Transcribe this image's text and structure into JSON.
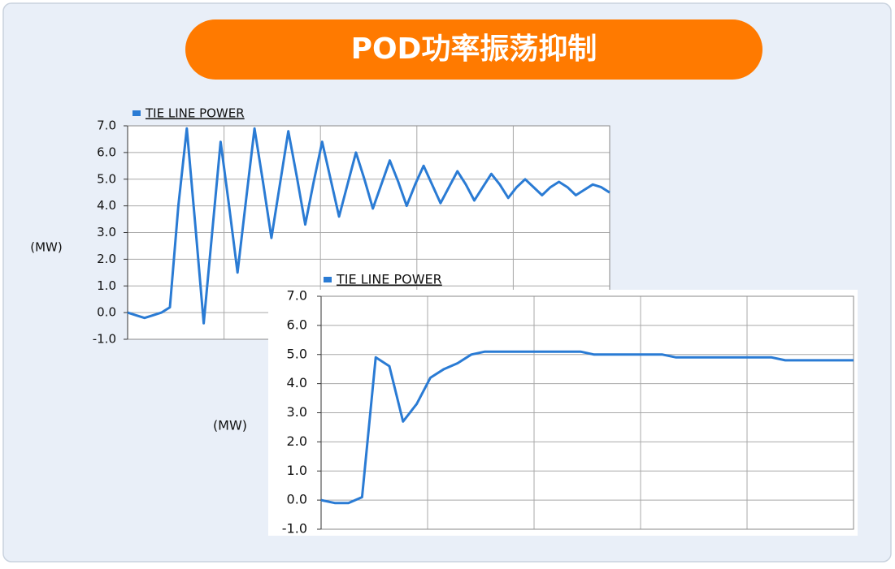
{
  "title": "POD功率振荡抑制",
  "chart_data": [
    {
      "type": "line",
      "ylabel": "(MW)",
      "grid": true,
      "ylim": [
        -1,
        7
      ],
      "yticks": [
        {
          "value": -1,
          "label": "-1.0"
        },
        {
          "value": 0,
          "label": "0.0"
        },
        {
          "value": 1,
          "label": "1.0"
        },
        {
          "value": 2,
          "label": "2.0"
        },
        {
          "value": 3,
          "label": "3.0"
        },
        {
          "value": 4,
          "label": "4.0"
        },
        {
          "value": 5,
          "label": "5.0"
        },
        {
          "value": 6,
          "label": "6.0"
        },
        {
          "value": 7,
          "label": "7.0"
        }
      ],
      "categories": [
        null,
        null,
        null,
        null,
        null,
        null,
        null,
        null,
        null,
        null,
        null,
        null,
        null,
        null,
        null,
        null,
        null,
        null,
        null,
        null,
        null,
        null,
        null,
        null,
        null,
        null,
        null,
        null,
        null,
        null,
        null,
        null,
        null,
        null,
        null,
        null,
        null,
        null,
        null,
        null,
        null,
        null,
        null,
        null,
        null,
        null,
        null,
        null,
        null,
        null,
        null,
        null,
        null,
        null,
        null,
        null,
        null,
        null
      ],
      "series": [
        {
          "name": "TIE LINE POWER",
          "color": "#2a7bd4",
          "values": [
            0.0,
            -0.1,
            -0.2,
            -0.1,
            0.0,
            0.2,
            4.0,
            6.9,
            3.3,
            -0.4,
            3.0,
            6.4,
            4.0,
            1.5,
            4.2,
            6.9,
            4.9,
            2.8,
            4.8,
            6.8,
            5.1,
            3.3,
            4.9,
            6.4,
            5.0,
            3.6,
            4.8,
            6.0,
            5.0,
            3.9,
            4.8,
            5.7,
            4.9,
            4.0,
            4.8,
            5.5,
            4.8,
            4.1,
            4.7,
            5.3,
            4.8,
            4.2,
            4.7,
            5.2,
            4.8,
            4.3,
            4.7,
            5.0,
            4.7,
            4.4,
            4.7,
            4.9,
            4.7,
            4.4,
            4.6,
            4.8,
            4.7,
            4.5
          ]
        }
      ]
    },
    {
      "type": "line",
      "ylabel": "(MW)",
      "grid": true,
      "ylim": [
        -1,
        7
      ],
      "yticks": [
        {
          "value": -1,
          "label": "-1.0"
        },
        {
          "value": 0,
          "label": "0.0"
        },
        {
          "value": 1,
          "label": "1.0"
        },
        {
          "value": 2,
          "label": "2.0"
        },
        {
          "value": 3,
          "label": "3.0"
        },
        {
          "value": 4,
          "label": "4.0"
        },
        {
          "value": 5,
          "label": "5.0"
        },
        {
          "value": 6,
          "label": "6.0"
        },
        {
          "value": 7,
          "label": "7.0"
        }
      ],
      "categories": [
        null,
        null,
        null,
        null,
        null,
        null,
        null,
        null,
        null,
        null,
        null,
        null,
        null,
        null,
        null,
        null,
        null,
        null,
        null,
        null,
        null,
        null,
        null,
        null,
        null,
        null,
        null,
        null,
        null,
        null,
        null,
        null,
        null,
        null,
        null,
        null,
        null,
        null,
        null,
        null
      ],
      "series": [
        {
          "name": "TIE LINE POWER",
          "color": "#2a7bd4",
          "values": [
            0.0,
            -0.1,
            -0.1,
            0.1,
            4.9,
            4.6,
            2.7,
            3.3,
            4.2,
            4.5,
            4.7,
            5.0,
            5.1,
            5.1,
            5.1,
            5.1,
            5.1,
            5.1,
            5.1,
            5.1,
            5.0,
            5.0,
            5.0,
            5.0,
            5.0,
            5.0,
            4.9,
            4.9,
            4.9,
            4.9,
            4.9,
            4.9,
            4.9,
            4.9,
            4.8,
            4.8,
            4.8,
            4.8,
            4.8,
            4.8
          ]
        }
      ]
    }
  ]
}
